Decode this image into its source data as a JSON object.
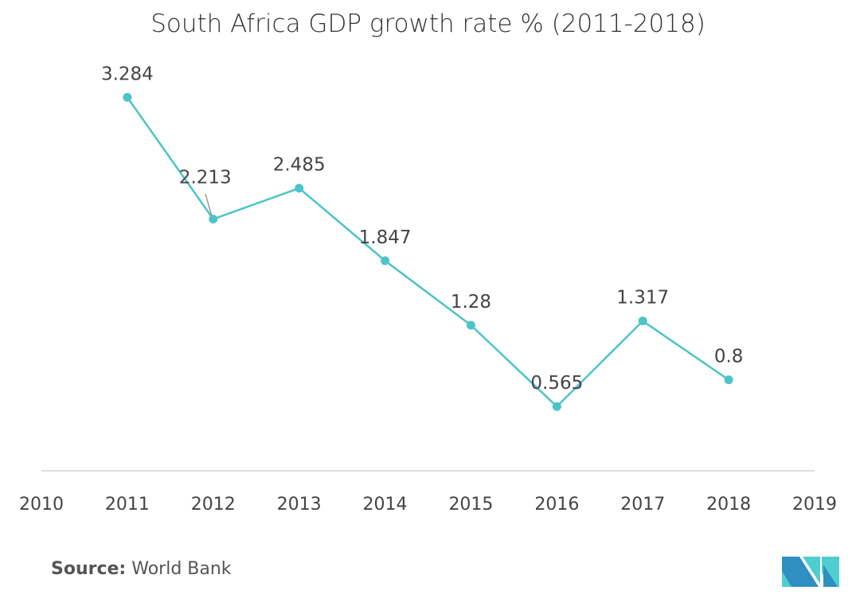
{
  "chart_data": {
    "type": "line",
    "title": "South Africa GDP growth rate % (2011-2018)",
    "x": [
      2011,
      2012,
      2013,
      2014,
      2015,
      2016,
      2017,
      2018
    ],
    "values": [
      3.284,
      2.213,
      2.485,
      1.847,
      1.28,
      0.565,
      1.317,
      0.8
    ],
    "data_labels": [
      "3.284",
      "2.213",
      "2.485",
      "1.847",
      "1.28",
      "0.565",
      "1.317",
      "0.8"
    ],
    "x_ticks": [
      "2010",
      "2011",
      "2012",
      "2013",
      "2014",
      "2015",
      "2016",
      "2017",
      "2018",
      "2019"
    ],
    "xlim": [
      2010,
      2019
    ],
    "ylim": [
      0,
      3.5
    ],
    "grid": false,
    "line_color": "#4cc4c8",
    "xlabel": "",
    "ylabel": ""
  },
  "source": {
    "label": "Source:",
    "text": "World Bank"
  },
  "logo": {
    "colors": [
      "#2e8fc0",
      "#4fcdd0"
    ]
  }
}
